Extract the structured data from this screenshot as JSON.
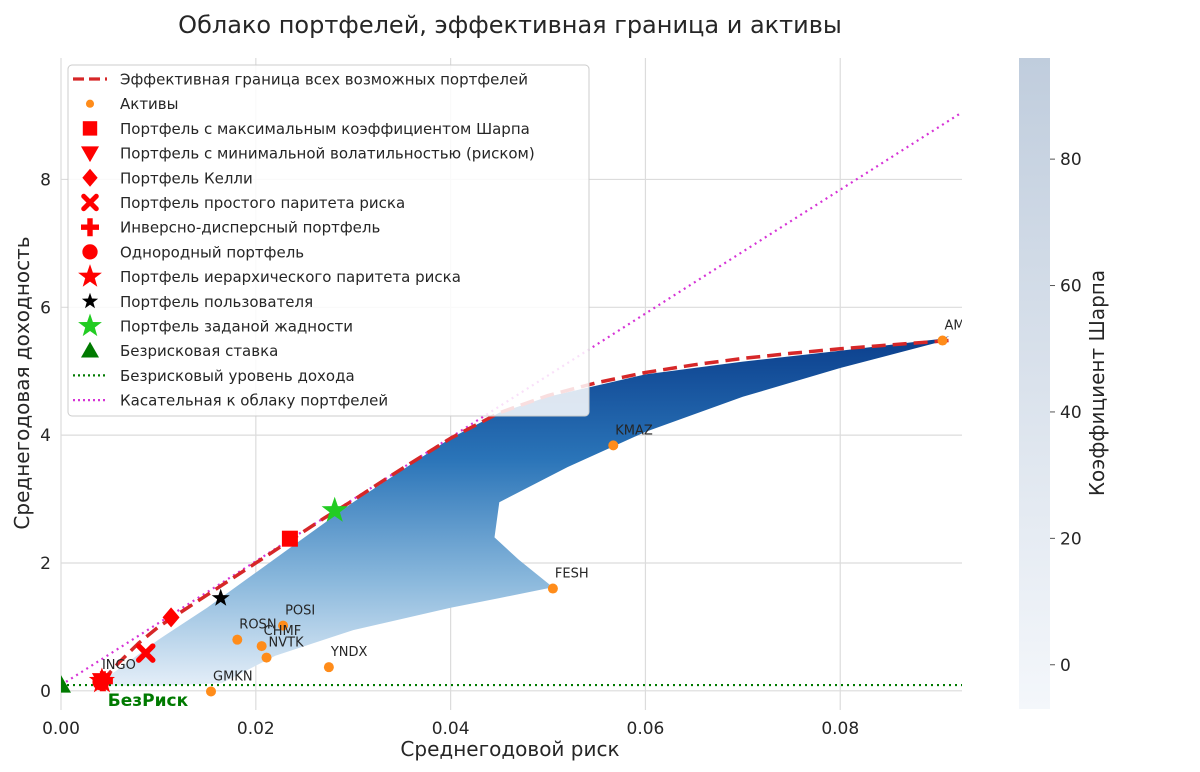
{
  "chart_data": {
    "type": "scatter",
    "title": "Облако портфелей, эффективная граница и активы",
    "xlabel": "Среднегодовой риск",
    "ylabel": "Среднегодовая доходность",
    "xlim": [
      0,
      0.0925
    ],
    "ylim": [
      -0.3,
      9.9
    ],
    "xticks": [
      "0.00",
      "0.02",
      "0.04",
      "0.06",
      "0.08"
    ],
    "xtick_values": [
      0,
      0.02,
      0.04,
      0.06,
      0.08
    ],
    "yticks": [
      "0",
      "2",
      "4",
      "6",
      "8"
    ],
    "ytick_values": [
      0,
      2,
      4,
      6,
      8
    ],
    "grid": true,
    "legend_position": "upper left",
    "colorbar": {
      "label": "Коэффициент Шарпа",
      "range": [
        -7,
        96
      ],
      "ticks": [
        "0",
        "20",
        "40",
        "60",
        "80"
      ],
      "tick_values": [
        0,
        20,
        40,
        60,
        80
      ],
      "colormap": "Blues"
    },
    "cloud_outline": [
      [
        0.0035,
        0.08
      ],
      [
        0.006,
        0.35
      ],
      [
        0.01,
        0.8
      ],
      [
        0.015,
        1.3
      ],
      [
        0.02,
        1.85
      ],
      [
        0.025,
        2.4
      ],
      [
        0.03,
        2.95
      ],
      [
        0.035,
        3.45
      ],
      [
        0.04,
        3.95
      ],
      [
        0.045,
        4.35
      ],
      [
        0.05,
        4.6
      ],
      [
        0.06,
        4.95
      ],
      [
        0.07,
        5.15
      ],
      [
        0.08,
        5.32
      ],
      [
        0.09,
        5.5
      ],
      [
        0.0912,
        5.55
      ],
      [
        0.09,
        5.45
      ],
      [
        0.08,
        5.05
      ],
      [
        0.07,
        4.6
      ],
      [
        0.06,
        4.05
      ],
      [
        0.052,
        3.5
      ],
      [
        0.045,
        2.95
      ],
      [
        0.0445,
        2.4
      ],
      [
        0.047,
        2.05
      ],
      [
        0.0505,
        1.62
      ],
      [
        0.045,
        1.45
      ],
      [
        0.04,
        1.3
      ],
      [
        0.03,
        0.95
      ],
      [
        0.022,
        0.55
      ],
      [
        0.0165,
        0.12
      ],
      [
        0.01,
        0.08
      ]
    ],
    "efficient_frontier": {
      "name": "Эффективная граница всех возможных портфелей",
      "color": "#d62728",
      "x": [
        0.0042,
        0.006,
        0.008,
        0.01,
        0.012,
        0.015,
        0.018,
        0.021,
        0.024,
        0.027,
        0.03,
        0.033,
        0.036,
        0.04,
        0.045,
        0.05,
        0.055,
        0.06,
        0.065,
        0.07,
        0.075,
        0.08,
        0.085,
        0.0912
      ],
      "y": [
        0.15,
        0.45,
        0.75,
        1.0,
        1.2,
        1.5,
        1.8,
        2.1,
        2.4,
        2.7,
        2.98,
        3.28,
        3.57,
        3.95,
        4.35,
        4.62,
        4.82,
        4.98,
        5.1,
        5.2,
        5.28,
        5.35,
        5.41,
        5.48
      ]
    },
    "assets": {
      "name": "Активы",
      "color": "#ff8c1a",
      "points": [
        {
          "label": "AMEZ",
          "x": 0.0905,
          "y": 5.48
        },
        {
          "label": "KMAZ",
          "x": 0.0567,
          "y": 3.84
        },
        {
          "label": "FESH",
          "x": 0.0505,
          "y": 1.6
        },
        {
          "label": "POSI",
          "x": 0.0228,
          "y": 1.02
        },
        {
          "label": "ROSN",
          "x": 0.0181,
          "y": 0.8
        },
        {
          "label": "CHMF",
          "x": 0.0206,
          "y": 0.7
        },
        {
          "label": "NVTK",
          "x": 0.0211,
          "y": 0.52
        },
        {
          "label": "YNDX",
          "x": 0.0275,
          "y": 0.37
        },
        {
          "label": "GMKN",
          "x": 0.0154,
          "y": -0.01
        },
        {
          "label": "INGO",
          "x": 0.004,
          "y": 0.17
        }
      ]
    },
    "special_portfolios": [
      {
        "name": "Портфель с максимальным коэффициентом Шарпа",
        "marker": "square",
        "color": "#ff0000",
        "x": 0.0235,
        "y": 2.38
      },
      {
        "name": "Портфель с минимальной волатильностью (риском)",
        "marker": "triangle-down",
        "color": "#ff0000",
        "x": 0.0042,
        "y": 0.16
      },
      {
        "name": "Портфель Келли",
        "marker": "diamond",
        "color": "#ff0000",
        "x": 0.0113,
        "y": 1.15
      },
      {
        "name": "Портфель простого паритета риска",
        "marker": "x",
        "color": "#ff0000",
        "x": 0.0087,
        "y": 0.59
      },
      {
        "name": "Инверсно-дисперсный портфель",
        "marker": "plus",
        "color": "#ff0000",
        "x": 0.0043,
        "y": 0.15
      },
      {
        "name": "Однородный портфель",
        "marker": "circle",
        "color": "#ff0000",
        "x": 0.0041,
        "y": 0.14
      },
      {
        "name": "Портфель иерархического паритета риска",
        "marker": "star",
        "color": "#ff0000",
        "x": 0.0042,
        "y": 0.15
      },
      {
        "name": "Портфель пользователя",
        "marker": "star-small",
        "color": "#000000",
        "x": 0.0164,
        "y": 1.45
      },
      {
        "name": "Портфель заданой жадности",
        "marker": "star",
        "color": "#22cc22",
        "x": 0.0281,
        "y": 2.82
      }
    ],
    "risk_free": {
      "name": "Безрисковая ставка",
      "marker": "triangle-up",
      "color": "#007a00",
      "x": 0.0,
      "y": 0.09
    },
    "risk_free_line": {
      "name": "Безрисковый уровень дохода",
      "color": "#007a00",
      "y": 0.09
    },
    "tangent_line": {
      "name": "Касательная к облаку портфелей",
      "color": "#d633d6",
      "x": [
        0,
        0.0925
      ],
      "y": [
        0.09,
        9.05
      ]
    },
    "annotations": [
      {
        "text": "БезРиск",
        "x": 0.0048,
        "y": -0.14,
        "color": "#007a00"
      }
    ],
    "legend": [
      {
        "label": "Эффективная граница всех возможных портфелей",
        "marker": "dash-line",
        "color": "#d62728"
      },
      {
        "label": "Активы",
        "marker": "dot",
        "color": "#ff8c1a"
      },
      {
        "label": "Портфель с максимальным коэффициентом Шарпа",
        "marker": "square",
        "color": "#ff0000"
      },
      {
        "label": "Портфель с минимальной волатильностью (риском)",
        "marker": "triangle-down",
        "color": "#ff0000"
      },
      {
        "label": "Портфель Келли",
        "marker": "diamond",
        "color": "#ff0000"
      },
      {
        "label": "Портфель простого паритета риска",
        "marker": "x",
        "color": "#ff0000"
      },
      {
        "label": "Инверсно-дисперсный портфель",
        "marker": "plus",
        "color": "#ff0000"
      },
      {
        "label": "Однородный портфель",
        "marker": "circle",
        "color": "#ff0000"
      },
      {
        "label": "Портфель иерархического паритета риска",
        "marker": "star",
        "color": "#ff0000"
      },
      {
        "label": "Портфель пользователя",
        "marker": "star-small",
        "color": "#000000"
      },
      {
        "label": "Портфель заданой жадности",
        "marker": "star",
        "color": "#22cc22"
      },
      {
        "label": "Безрисковая ставка",
        "marker": "triangle-up",
        "color": "#007a00"
      },
      {
        "label": "Безрисковый уровень дохода",
        "marker": "dotted-line",
        "color": "#007a00"
      },
      {
        "label": "Касательная к облаку портфелей",
        "marker": "dotted-line",
        "color": "#d633d6"
      }
    ]
  }
}
